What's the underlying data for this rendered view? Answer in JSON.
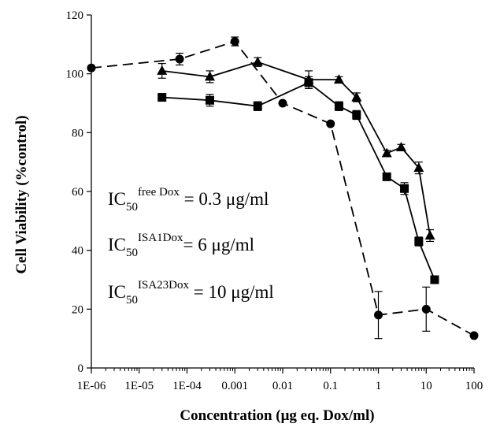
{
  "chart_data": {
    "type": "line",
    "xlabel": "Concentration (μg eq. Dox/ml)",
    "ylabel": "Cell Viability (%control)",
    "xscale": "log",
    "xlim": [
      1e-06,
      100
    ],
    "ylim": [
      0,
      120
    ],
    "x_ticks": [
      "1E-06",
      "1E-05",
      "1E-04",
      "0.001",
      "0.01",
      "0.1",
      "1",
      "10",
      "100"
    ],
    "y_ticks": [
      "0",
      "20",
      "40",
      "60",
      "80",
      "100",
      "120"
    ],
    "grid": false,
    "series": [
      {
        "marker": "circle",
        "linestyle": "dashed",
        "color": "#000000",
        "x": [
          1e-06,
          7e-05,
          0.001,
          0.01,
          0.1,
          1,
          10,
          100
        ],
        "y": [
          102,
          105,
          111,
          90,
          83,
          18,
          20,
          11
        ],
        "err": [
          0,
          2,
          1.5,
          0,
          0,
          8,
          7.5,
          0
        ]
      },
      {
        "marker": "triangle",
        "linestyle": "solid",
        "color": "#000000",
        "x": [
          3e-05,
          0.0003,
          0.003,
          0.035,
          0.15,
          0.35,
          1.5,
          3,
          7,
          12
        ],
        "y": [
          101,
          99,
          104,
          98,
          98,
          92,
          73,
          75,
          68,
          45
        ],
        "err": [
          2.5,
          2,
          1.5,
          3,
          1,
          1.5,
          1,
          1,
          2,
          2
        ]
      },
      {
        "marker": "square",
        "linestyle": "solid",
        "color": "#000000",
        "x": [
          3e-05,
          0.0003,
          0.003,
          0.035,
          0.15,
          0.35,
          1.5,
          3.5,
          7,
          15
        ],
        "y": [
          92,
          91,
          89,
          97,
          89,
          86,
          65,
          61,
          43,
          30
        ],
        "err": [
          0,
          2,
          1.5,
          2,
          1.5,
          1.5,
          1,
          2,
          1.5,
          0
        ]
      }
    ],
    "annotations": [
      {
        "base": "IC",
        "sub": "50",
        "sup": "free Dox",
        "text": " = 0.3 μg/ml"
      },
      {
        "base": "IC",
        "sub": "50",
        "sup": "ISA1Dox",
        "text": "= 6 μg/ml"
      },
      {
        "base": "IC",
        "sub": "50",
        "sup": "ISA23Dox",
        "text": " = 10 μg/ml"
      }
    ]
  }
}
